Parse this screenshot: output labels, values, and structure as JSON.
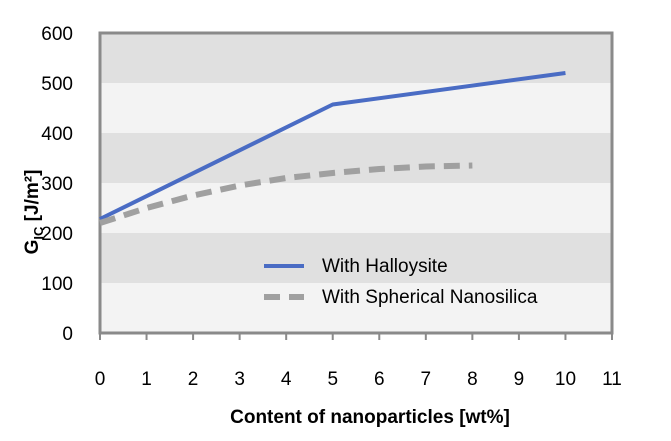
{
  "chart_data": {
    "type": "line",
    "xlabel": "Content of nanoparticles [wt%]",
    "ylabel": {
      "main": "G",
      "sub": "IC",
      "unit": " [J/m²]"
    },
    "xlim": [
      0,
      11
    ],
    "ylim": [
      0,
      600
    ],
    "x_ticks": [
      0,
      1,
      2,
      3,
      4,
      5,
      6,
      7,
      8,
      9,
      10,
      11
    ],
    "y_ticks": [
      0,
      100,
      200,
      300,
      400,
      500,
      600
    ],
    "grid": "horizontal bands",
    "legend_position": "lower-right",
    "series": [
      {
        "name": "With Halloysite",
        "color": "#4a6cc4",
        "style": "solid",
        "x": [
          0,
          5,
          10
        ],
        "y": [
          228,
          457,
          520
        ]
      },
      {
        "name": "With Spherical Nanosilica",
        "color": "#a0a0a0",
        "style": "dashed",
        "x": [
          0,
          1,
          2,
          3,
          4,
          5,
          6,
          7,
          8
        ],
        "y": [
          220,
          250,
          275,
          295,
          310,
          320,
          328,
          333,
          335
        ]
      }
    ]
  }
}
